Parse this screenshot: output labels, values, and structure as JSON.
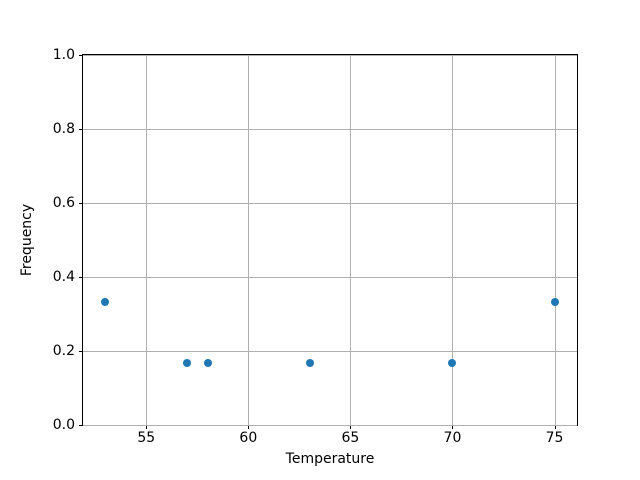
{
  "figure": {
    "background": "#ffffff"
  },
  "chart_data": {
    "type": "scatter",
    "title": "",
    "xlabel": "Temperature",
    "ylabel": "Frequency",
    "xlim": [
      51.9,
      76.1
    ],
    "ylim": [
      0.0,
      1.0
    ],
    "xticks": [
      {
        "value": 55,
        "label": "55"
      },
      {
        "value": 60,
        "label": "60"
      },
      {
        "value": 65,
        "label": "65"
      },
      {
        "value": 70,
        "label": "70"
      },
      {
        "value": 75,
        "label": "75"
      }
    ],
    "yticks": [
      {
        "value": 0.0,
        "label": "0.0"
      },
      {
        "value": 0.2,
        "label": "0.2"
      },
      {
        "value": 0.4,
        "label": "0.4"
      },
      {
        "value": 0.6,
        "label": "0.6"
      },
      {
        "value": 0.8,
        "label": "0.8"
      },
      {
        "value": 1.0,
        "label": "1.0"
      }
    ],
    "points": [
      {
        "x": 53,
        "y": 0.333
      },
      {
        "x": 57,
        "y": 0.167
      },
      {
        "x": 58,
        "y": 0.167
      },
      {
        "x": 63,
        "y": 0.167
      },
      {
        "x": 70,
        "y": 0.167
      },
      {
        "x": 75,
        "y": 0.333
      }
    ],
    "grid": true,
    "legend_position": "none",
    "marker_color": "#1f77b4",
    "grid_color": "#b0b0b0",
    "spine_color": "#000000",
    "text_color": "#000000"
  }
}
